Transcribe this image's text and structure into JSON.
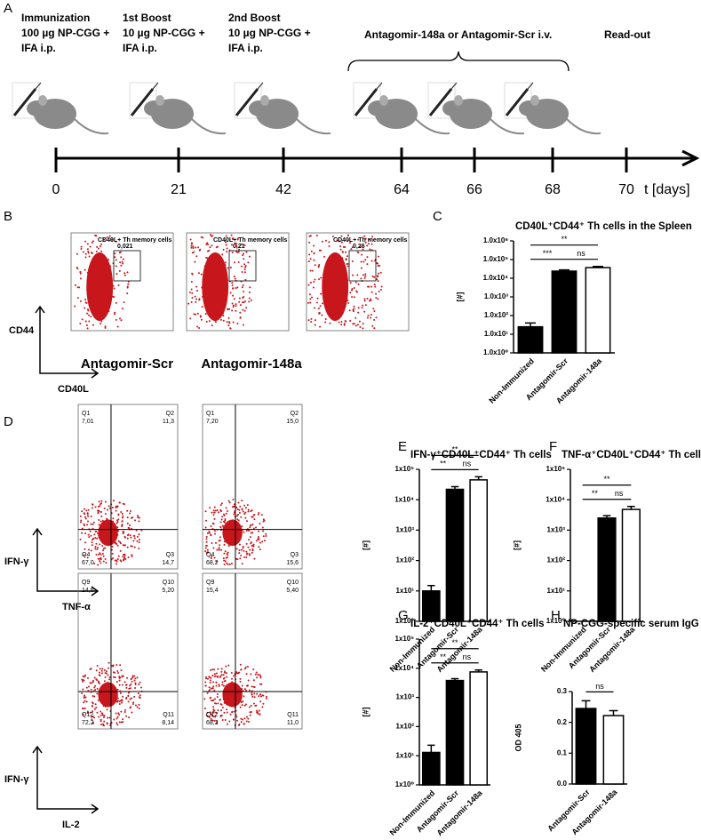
{
  "panel_a": {
    "letter": "A",
    "events": [
      {
        "lines": [
          "Immunization",
          "100 µg NP-CGG +",
          "IFA i.p."
        ]
      },
      {
        "lines": [
          "1st Boost",
          "10 µg NP-CGG +",
          "IFA i.p."
        ]
      },
      {
        "lines": [
          "2nd Boost",
          "10 µg NP-CGG +",
          "IFA i.p."
        ]
      }
    ],
    "brace_label": "Antagomir-148a or Antagomir-Scr i.v.",
    "readout": "Read-out",
    "days": [
      "0",
      "21",
      "42",
      "64",
      "66",
      "68",
      "70"
    ],
    "axis_unit": "t [days]"
  },
  "panel_b": {
    "letter": "B",
    "plots": [
      {
        "gate": "CD40L+ Th memory cells",
        "value": "0,021"
      },
      {
        "gate": "CD40L+ Th memory cells",
        "value": "0,21"
      },
      {
        "gate": "CD40L+ Th memory cells",
        "value": "0,26"
      }
    ],
    "y_axis": "CD44",
    "x_axis": "CD40L"
  },
  "panel_d": {
    "letter": "D",
    "columns": [
      "Antagomir-Scr",
      "Antagomir-148a"
    ],
    "rows": [
      {
        "y_axis": "IFN-γ",
        "x_axis": "TNF-α",
        "plots": [
          {
            "quadrants": [
              [
                "Q1",
                "7,01"
              ],
              [
                "Q2",
                "11,3"
              ],
              [
                "Q4",
                "67,0"
              ],
              [
                "Q3",
                "14,7"
              ]
            ]
          },
          {
            "quadrants": [
              [
                "Q1",
                "7,20"
              ],
              [
                "Q2",
                "15,0"
              ],
              [
                "Q4",
                "68,2"
              ],
              [
                "Q3",
                "15,6"
              ]
            ]
          }
        ]
      },
      {
        "y_axis": "IFN-γ",
        "x_axis": "IL-2",
        "plots": [
          {
            "quadrants": [
              [
                "Q9",
                "14,6"
              ],
              [
                "Q10",
                "5,20"
              ],
              [
                "Q12",
                "72,2"
              ],
              [
                "Q11",
                "8,14"
              ]
            ]
          },
          {
            "quadrants": [
              [
                "Q9",
                "15,4"
              ],
              [
                "Q10",
                "5,40"
              ],
              [
                "Q12",
                "68,2"
              ],
              [
                "Q11",
                "11,0"
              ]
            ]
          }
        ]
      }
    ]
  },
  "chart_data": [
    {
      "letter": "C",
      "type": "bar",
      "title": "CD40L⁺CD44⁺ Th cells in the Spleen",
      "ylabel": "[#]",
      "categories": [
        "Non-Immunized",
        "Antagomir-Scr",
        "Antagomir-148a"
      ],
      "values": [
        25,
        24000,
        37000
      ],
      "errors": [
        15,
        4000,
        6000
      ],
      "colors": [
        "#000000",
        "#000000",
        "#ffffff"
      ],
      "log_scale": true,
      "ylim": [
        1,
        1000000
      ],
      "yticks": [
        {
          "value": 1,
          "label": "1.0x10⁰"
        },
        {
          "value": 10,
          "label": "1.0x10¹"
        },
        {
          "value": 100,
          "label": "1.0x10²"
        },
        {
          "value": 1000,
          "label": "1.0x10³"
        },
        {
          "value": 10000,
          "label": "1.0x10⁴"
        },
        {
          "value": 100000,
          "label": "1.0x10⁵"
        },
        {
          "value": 1000000,
          "label": "1.0x10⁶"
        }
      ],
      "significance": [
        "**",
        "***",
        "ns"
      ]
    },
    {
      "letter": "E",
      "type": "bar",
      "title": "IFN-γ⁺CD40L⁺CD44⁺ Th cells",
      "ylabel": "[#]",
      "categories": [
        "Non-Immunized",
        "Antagomir-Scr",
        "Antagomir-148a"
      ],
      "values": [
        10,
        22000,
        45000
      ],
      "errors": [
        5,
        5000,
        12000
      ],
      "colors": [
        "#000000",
        "#000000",
        "#ffffff"
      ],
      "log_scale": true,
      "ylim": [
        1,
        100000
      ],
      "yticks": [
        {
          "value": 1,
          "label": "1x10⁰"
        },
        {
          "value": 10,
          "label": "1x10¹"
        },
        {
          "value": 100,
          "label": "1x10²"
        },
        {
          "value": 1000,
          "label": "1x10³"
        },
        {
          "value": 10000,
          "label": "1x10⁴"
        },
        {
          "value": 100000,
          "label": "1x10⁵"
        }
      ],
      "significance": [
        "**",
        "**",
        "ns"
      ]
    },
    {
      "letter": "F",
      "type": "bar",
      "title": "TNF-α⁺CD40L⁺CD44⁺ Th cells",
      "ylabel": "[#]",
      "categories": [
        "Non-Immunized",
        "Antagomir-Scr",
        "Antagomir-148a"
      ],
      "values": [
        null,
        2500,
        4800
      ],
      "errors": [
        null,
        500,
        1200
      ],
      "colors": [
        "#000000",
        "#000000",
        "#ffffff"
      ],
      "log_scale": true,
      "ylim": [
        1,
        100000
      ],
      "yticks": [
        {
          "value": 1,
          "label": "1x10⁰"
        },
        {
          "value": 10,
          "label": "1x10¹"
        },
        {
          "value": 100,
          "label": "1x10²"
        },
        {
          "value": 1000,
          "label": "1x10³"
        },
        {
          "value": 10000,
          "label": "1x10⁴"
        },
        {
          "value": 100000,
          "label": "1x10⁵"
        }
      ],
      "significance": [
        "**",
        "**",
        "ns"
      ]
    },
    {
      "letter": "G",
      "type": "bar",
      "title": "IL-2⁺CD40L⁺CD44⁺ Th cells",
      "ylabel": "[#]",
      "categories": [
        "Non-Immunized",
        "Antagomir-Scr",
        "Antagomir-148a"
      ],
      "values": [
        13,
        3800,
        7500
      ],
      "errors": [
        10,
        600,
        1200
      ],
      "colors": [
        "#000000",
        "#000000",
        "#ffffff"
      ],
      "log_scale": true,
      "ylim": [
        1,
        100000
      ],
      "yticks": [
        {
          "value": 1,
          "label": "1x10⁰"
        },
        {
          "value": 10,
          "label": "1x10¹"
        },
        {
          "value": 100,
          "label": "1x10²"
        },
        {
          "value": 1000,
          "label": "1x10³"
        },
        {
          "value": 10000,
          "label": "1x10⁴"
        },
        {
          "value": 100000,
          "label": "1x10⁵"
        }
      ],
      "significance": [
        "**",
        "**",
        "ns"
      ]
    },
    {
      "letter": "H",
      "type": "bar",
      "title": "NP-CGG-specific serum IgG",
      "ylabel": "OD 405",
      "categories": [
        "Antagomir-Scr",
        "Antagomir-148a"
      ],
      "values": [
        0.245,
        0.222
      ],
      "errors": [
        0.025,
        0.016
      ],
      "colors": [
        "#000000",
        "#ffffff"
      ],
      "log_scale": false,
      "ylim": [
        0,
        0.3
      ],
      "yticks": [
        {
          "value": 0,
          "label": "0.0"
        },
        0.1,
        0.2,
        0.3
      ],
      "significance": [
        "ns"
      ]
    }
  ]
}
